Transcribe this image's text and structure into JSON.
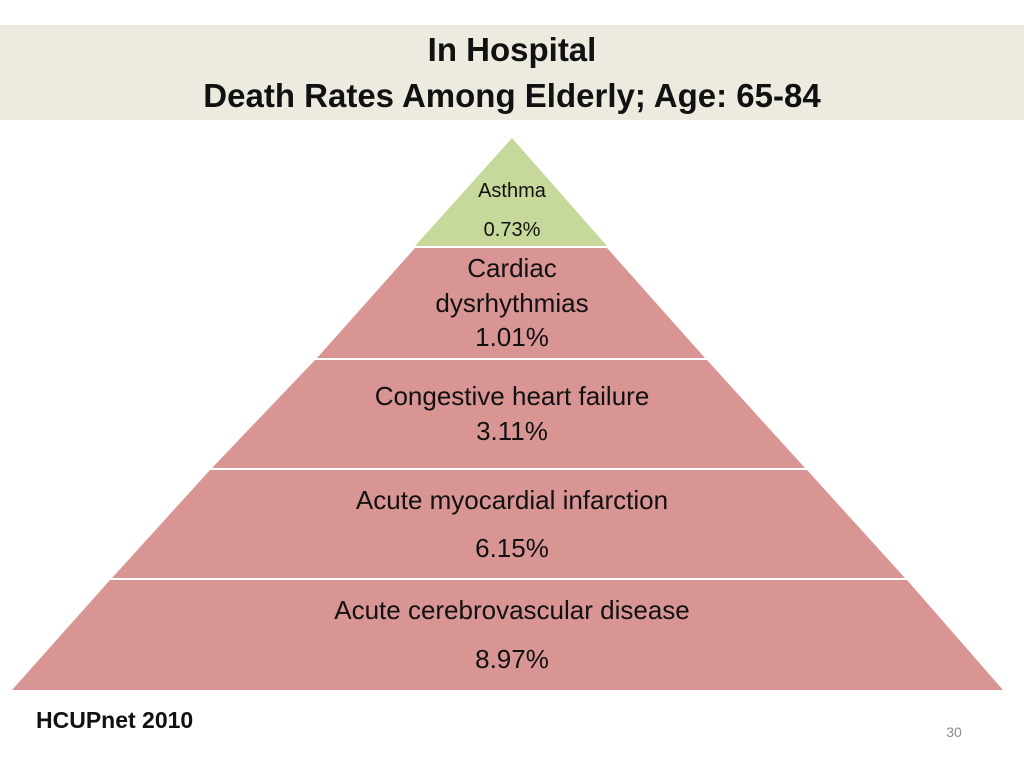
{
  "title": {
    "line1": "In Hospital",
    "line2": "Death Rates Among Elderly; Age: 65-84"
  },
  "colors": {
    "title_band": "#edebe0",
    "top_level": "#c6d99a",
    "levels": "#d99594",
    "separator": "#ffffff"
  },
  "pyramid": {
    "levels": [
      {
        "lines": [
          "Asthma"
        ],
        "value": "0.73%"
      },
      {
        "lines": [
          "Cardiac",
          "dysrhythmias"
        ],
        "value": "1.01%"
      },
      {
        "lines": [
          "Congestive heart failure"
        ],
        "value": "3.11%"
      },
      {
        "lines": [
          "Acute myocardial infarction"
        ],
        "value": "6.15%"
      },
      {
        "lines": [
          "Acute cerebrovascular disease"
        ],
        "value": "8.97%"
      }
    ]
  },
  "footer": {
    "source": "HCUPnet 2010",
    "page_number": "30"
  }
}
